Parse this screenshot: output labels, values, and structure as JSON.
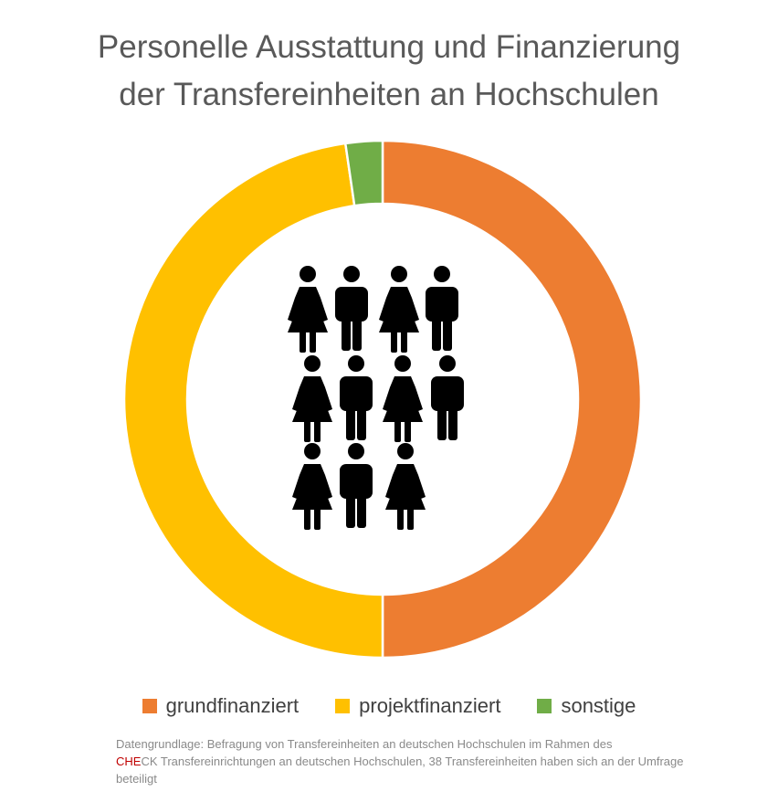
{
  "title": {
    "line1": "Personelle Ausstattung und Finanzierung",
    "line2": "der Transfereinheiten an Hochschulen"
  },
  "chart_data": {
    "type": "pie",
    "variant": "donut",
    "categories": [
      "grundfinanziert",
      "projektfinanziert",
      "sonstige"
    ],
    "values": [
      50,
      47.7,
      2.3
    ],
    "unit": "%",
    "colors": [
      "#ed7d31",
      "#ffc000",
      "#70ad47"
    ],
    "start_angle_deg": 0,
    "direction": "clockwise",
    "legend_position": "bottom",
    "center_icons": {
      "rows": [
        [
          "female-icon",
          "male-icon",
          "female-icon",
          "male-icon"
        ],
        [
          "female-icon",
          "male-icon",
          "female-icon",
          "male-icon"
        ],
        [
          "female-icon",
          "male-icon",
          "female-icon"
        ]
      ],
      "color": "#000000"
    }
  },
  "source": {
    "text1": "Datengrundlage: Befragung von Transfereinheiten an deutschen Hochschulen im Rahmen des",
    "check_red": "CHE",
    "check_rest": "CK Transfereinrichtungen an deutschen Hochschulen,  38 Transfereinheiten haben sich an der Umfrage beteiligt"
  }
}
